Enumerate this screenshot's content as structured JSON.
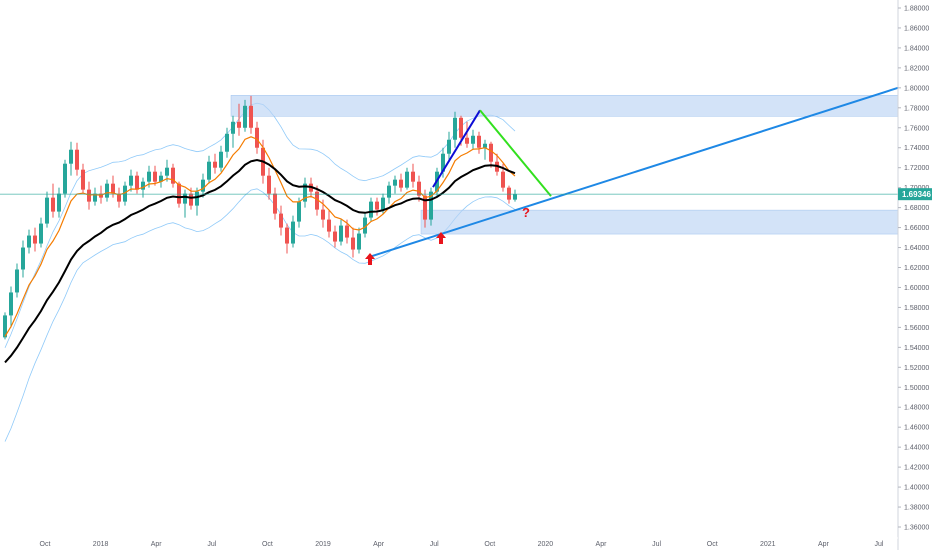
{
  "chart_data": {
    "type": "candlestick",
    "title": "",
    "y_axis": {
      "ticks": [
        "1.88000",
        "1.86000",
        "1.84000",
        "1.82000",
        "1.80000",
        "1.78000",
        "1.76000",
        "1.74000",
        "1.72000",
        "1.70000",
        "1.68000",
        "1.66000",
        "1.64000",
        "1.62000",
        "1.60000",
        "1.58000",
        "1.56000",
        "1.54000",
        "1.52000",
        "1.50000",
        "1.48000",
        "1.46000",
        "1.44000",
        "1.42000",
        "1.40000",
        "1.38000",
        "1.36000"
      ],
      "range": [
        1.355,
        1.884
      ]
    },
    "x_axis": {
      "ticks": [
        "Oct",
        "2018",
        "Apr",
        "Jul",
        "Oct",
        "2019",
        "Apr",
        "Jul",
        "Oct",
        "2020",
        "Apr",
        "Jul",
        "Oct",
        "2021",
        "Apr",
        "Jul"
      ]
    },
    "last_price": {
      "label": "1.69346",
      "value": 1.69346,
      "color": "#26a69a"
    },
    "colors": {
      "up": "#26a69a",
      "down": "#ef5350",
      "ema_fast": "#f57c00",
      "ema_slow": "#000000",
      "band": "#90caf9",
      "zone": "#bbd4f5",
      "trendline": "#1e88e5",
      "blue_line": "#0d0dd6",
      "green_line": "#32e01e",
      "arrow": "#e8141c"
    },
    "zones": [
      {
        "name": "resistance-zone",
        "top": 1.7925,
        "bottom": 1.7715
      },
      {
        "name": "support-zone",
        "top": 1.6775,
        "bottom": 1.6535
      }
    ],
    "drawings": [
      {
        "name": "rising-trendline",
        "from": [
          1.6305
        ],
        "to": [
          1.8
        ]
      },
      {
        "name": "blue-impulse-line",
        "from": [
          1.7005
        ],
        "to": [
          1.7775
        ]
      },
      {
        "name": "green-down-line",
        "from": [
          1.7775
        ],
        "to": [
          1.6915
        ]
      }
    ],
    "annotations": [
      {
        "name": "question-mark",
        "text": "?"
      },
      {
        "name": "up-arrow-1",
        "text": ""
      },
      {
        "name": "up-arrow-2",
        "text": ""
      }
    ],
    "candles": [
      [
        1.55,
        1.575,
        1.548,
        1.572
      ],
      [
        1.572,
        1.601,
        1.56,
        1.595
      ],
      [
        1.595,
        1.624,
        1.59,
        1.618
      ],
      [
        1.618,
        1.647,
        1.61,
        1.64
      ],
      [
        1.64,
        1.658,
        1.634,
        1.652
      ],
      [
        1.652,
        1.66,
        1.636,
        1.644
      ],
      [
        1.644,
        1.67,
        1.64,
        1.664
      ],
      [
        1.664,
        1.696,
        1.66,
        1.69
      ],
      [
        1.69,
        1.704,
        1.67,
        1.676
      ],
      [
        1.676,
        1.7,
        1.67,
        1.694
      ],
      [
        1.694,
        1.728,
        1.69,
        1.724
      ],
      [
        1.724,
        1.746,
        1.712,
        1.738
      ],
      [
        1.738,
        1.745,
        1.712,
        1.718
      ],
      [
        1.718,
        1.724,
        1.694,
        1.698
      ],
      [
        1.698,
        1.706,
        1.678,
        1.686
      ],
      [
        1.686,
        1.7,
        1.682,
        1.694
      ],
      [
        1.694,
        1.702,
        1.684,
        1.69
      ],
      [
        1.69,
        1.708,
        1.686,
        1.704
      ],
      [
        1.704,
        1.712,
        1.69,
        1.694
      ],
      [
        1.694,
        1.7,
        1.68,
        1.686
      ],
      [
        1.686,
        1.706,
        1.682,
        1.702
      ],
      [
        1.702,
        1.718,
        1.696,
        1.712
      ],
      [
        1.712,
        1.716,
        1.694,
        1.698
      ],
      [
        1.698,
        1.71,
        1.69,
        1.706
      ],
      [
        1.706,
        1.722,
        1.7,
        1.716
      ],
      [
        1.716,
        1.722,
        1.702,
        1.706
      ],
      [
        1.706,
        1.716,
        1.7,
        1.712
      ],
      [
        1.712,
        1.728,
        1.706,
        1.72
      ],
      [
        1.72,
        1.724,
        1.7,
        1.704
      ],
      [
        1.704,
        1.706,
        1.68,
        1.684
      ],
      [
        1.684,
        1.698,
        1.67,
        1.694
      ],
      [
        1.694,
        1.7,
        1.678,
        1.682
      ],
      [
        1.682,
        1.7,
        1.672,
        1.696
      ],
      [
        1.696,
        1.714,
        1.69,
        1.708
      ],
      [
        1.708,
        1.732,
        1.704,
        1.726
      ],
      [
        1.726,
        1.734,
        1.714,
        1.72
      ],
      [
        1.72,
        1.742,
        1.716,
        1.736
      ],
      [
        1.736,
        1.76,
        1.73,
        1.754
      ],
      [
        1.754,
        1.772,
        1.74,
        1.766
      ],
      [
        1.766,
        1.784,
        1.752,
        1.76
      ],
      [
        1.76,
        1.788,
        1.756,
        1.782
      ],
      [
        1.782,
        1.792,
        1.754,
        1.76
      ],
      [
        1.76,
        1.766,
        1.734,
        1.74
      ],
      [
        1.74,
        1.748,
        1.704,
        1.712
      ],
      [
        1.712,
        1.72,
        1.688,
        1.694
      ],
      [
        1.694,
        1.7,
        1.668,
        1.674
      ],
      [
        1.674,
        1.682,
        1.652,
        1.66
      ],
      [
        1.66,
        1.664,
        1.634,
        1.644
      ],
      [
        1.644,
        1.672,
        1.64,
        1.666
      ],
      [
        1.666,
        1.69,
        1.66,
        1.686
      ],
      [
        1.686,
        1.71,
        1.68,
        1.704
      ],
      [
        1.704,
        1.71,
        1.69,
        1.696
      ],
      [
        1.696,
        1.702,
        1.672,
        1.678
      ],
      [
        1.678,
        1.688,
        1.66,
        1.668
      ],
      [
        1.668,
        1.678,
        1.65,
        1.656
      ],
      [
        1.656,
        1.662,
        1.64,
        1.646
      ],
      [
        1.646,
        1.668,
        1.642,
        1.662
      ],
      [
        1.662,
        1.668,
        1.644,
        1.65
      ],
      [
        1.65,
        1.66,
        1.63,
        1.638
      ],
      [
        1.638,
        1.66,
        1.634,
        1.654
      ],
      [
        1.654,
        1.674,
        1.65,
        1.67
      ],
      [
        1.67,
        1.69,
        1.666,
        1.686
      ],
      [
        1.686,
        1.69,
        1.672,
        1.678
      ],
      [
        1.678,
        1.694,
        1.674,
        1.69
      ],
      [
        1.69,
        1.706,
        1.684,
        1.702
      ],
      [
        1.702,
        1.712,
        1.694,
        1.708
      ],
      [
        1.708,
        1.714,
        1.696,
        1.7
      ],
      [
        1.7,
        1.72,
        1.698,
        1.716
      ],
      [
        1.716,
        1.724,
        1.7,
        1.706
      ],
      [
        1.706,
        1.712,
        1.686,
        1.692
      ],
      [
        1.692,
        1.698,
        1.66,
        1.668
      ],
      [
        1.668,
        1.7,
        1.662,
        1.696
      ],
      [
        1.696,
        1.72,
        1.69,
        1.716
      ],
      [
        1.716,
        1.74,
        1.71,
        1.734
      ],
      [
        1.734,
        1.756,
        1.726,
        1.748
      ],
      [
        1.748,
        1.776,
        1.74,
        1.77
      ],
      [
        1.77,
        1.772,
        1.742,
        1.75
      ],
      [
        1.75,
        1.766,
        1.74,
        1.744
      ],
      [
        1.744,
        1.758,
        1.738,
        1.752
      ],
      [
        1.752,
        1.756,
        1.734,
        1.74
      ],
      [
        1.74,
        1.748,
        1.728,
        1.744
      ],
      [
        1.744,
        1.746,
        1.72,
        1.726
      ],
      [
        1.726,
        1.734,
        1.712,
        1.716
      ],
      [
        1.716,
        1.724,
        1.696,
        1.7
      ],
      [
        1.7,
        1.702,
        1.684,
        1.688
      ],
      [
        1.688,
        1.698,
        1.686,
        1.6935
      ]
    ]
  }
}
